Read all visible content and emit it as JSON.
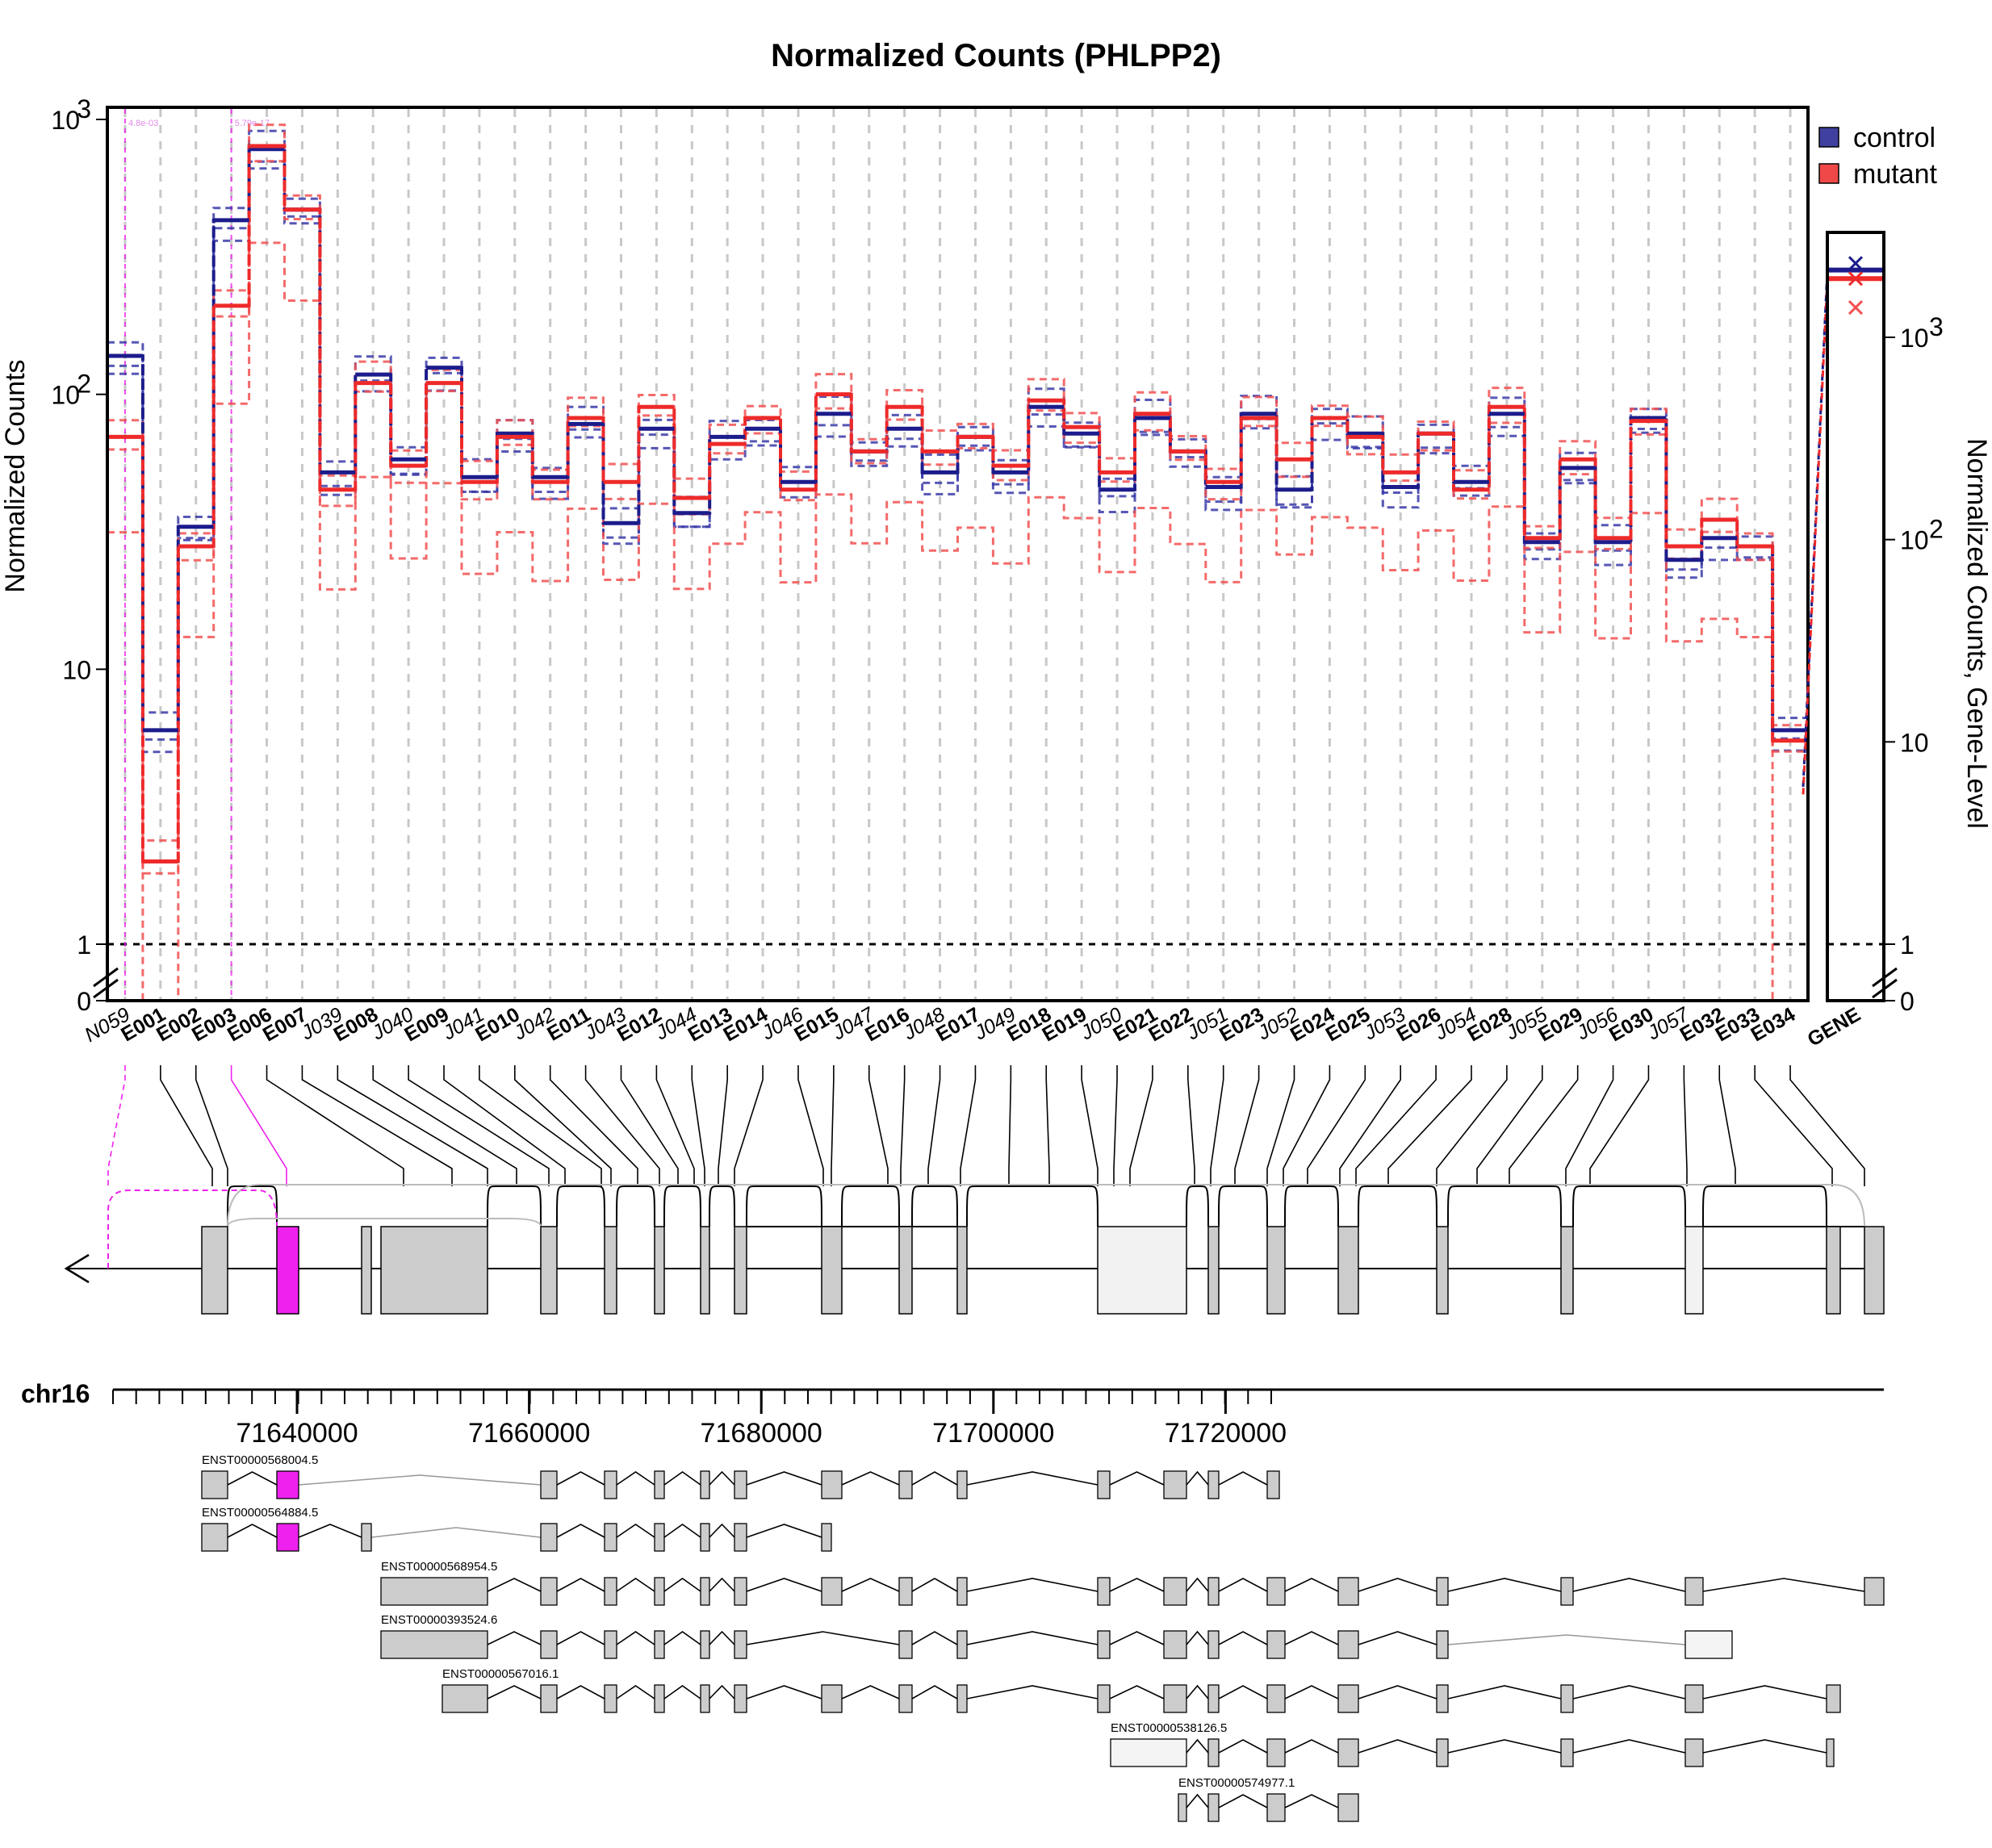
{
  "title": "Normalized Counts (PHLPP2)",
  "ylabel": "Normalized Counts",
  "ylabel_right": "Normalized Counts, Gene-Level",
  "chromosome": "chr16",
  "legend": [
    {
      "label": "control",
      "color": "#4040a0"
    },
    {
      "label": "mutant",
      "color": "#f04848"
    }
  ],
  "colors": {
    "control_mean": "#1c1c8c",
    "control_rep": "#3a3aa8",
    "mutant_mean": "#ee2a2a",
    "mutant_rep": "#f25050",
    "highlight": "#ee22ee"
  },
  "chart_data": {
    "type": "line",
    "scale": "log",
    "ylim": [
      0,
      1000
    ],
    "y_ticks": [
      {
        "v": 1000,
        "base": "10",
        "exp": "3"
      },
      {
        "v": 100,
        "base": "10",
        "exp": "2"
      },
      {
        "v": 10,
        "base": "10",
        "exp": ""
      },
      {
        "v": 1,
        "base": "1",
        "exp": ""
      },
      {
        "v": 0,
        "base": "0",
        "exp": ""
      }
    ],
    "features": [
      "N059",
      "E001",
      "E002",
      "E003",
      "E006",
      "E007",
      "J039",
      "E008",
      "J040",
      "E009",
      "J041",
      "E010",
      "J042",
      "E011",
      "J043",
      "E012",
      "J044",
      "E013",
      "E014",
      "J046",
      "E015",
      "J047",
      "E016",
      "J048",
      "E017",
      "J049",
      "E018",
      "E019",
      "J050",
      "E021",
      "E022",
      "J051",
      "E023",
      "J052",
      "E024",
      "E025",
      "J053",
      "E026",
      "J054",
      "E028",
      "J055",
      "E029",
      "J056",
      "E030",
      "J057",
      "E032",
      "E033",
      "E034"
    ],
    "pvalue_labels": [
      {
        "feature": "N059",
        "text": "4.8e-03"
      },
      {
        "feature": "E003",
        "text": "5.79e-17"
      }
    ],
    "series": [
      {
        "name": "control",
        "values": [
          138,
          6,
          33,
          430,
          780,
          470,
          52,
          118,
          58,
          125,
          50,
          72,
          50,
          78,
          34,
          75,
          37,
          70,
          75,
          48,
          85,
          62,
          75,
          52,
          70,
          52,
          90,
          72,
          45,
          82,
          62,
          46,
          85,
          45,
          82,
          72,
          46,
          72,
          48,
          85,
          29,
          54,
          29,
          82,
          25,
          30,
          28,
          6
        ]
      },
      {
        "name": "mutant",
        "values": [
          70,
          2,
          28,
          210,
          800,
          470,
          45,
          110,
          55,
          110,
          48,
          70,
          48,
          82,
          48,
          90,
          42,
          66,
          82,
          45,
          100,
          62,
          90,
          62,
          70,
          55,
          95,
          76,
          52,
          85,
          62,
          48,
          82,
          58,
          82,
          70,
          52,
          72,
          45,
          90,
          30,
          58,
          30,
          80,
          28,
          35,
          28,
          5.5
        ]
      }
    ],
    "gene_level": {
      "label": "GENE",
      "ylim": [
        0,
        3000
      ],
      "y_ticks": [
        {
          "v": 1000,
          "base": "10",
          "exp": "3"
        },
        {
          "v": 100,
          "base": "10",
          "exp": "2"
        },
        {
          "v": 10,
          "base": "10",
          "exp": ""
        },
        {
          "v": 1,
          "base": "1",
          "exp": ""
        },
        {
          "v": 0,
          "base": "0",
          "exp": ""
        }
      ],
      "control": 2150,
      "mutant": 1950
    },
    "genomic_axis": {
      "ticks": [
        "71640000",
        "71660000",
        "71680000",
        "71700000",
        "71720000"
      ]
    },
    "transcripts": [
      "ENST00000568004.5",
      "ENST00000564884.5",
      "ENST00000568954.5",
      "ENST00000393524.6",
      "ENST00000567016.1",
      "ENST00000538126.5",
      "ENST00000574977.1"
    ]
  }
}
